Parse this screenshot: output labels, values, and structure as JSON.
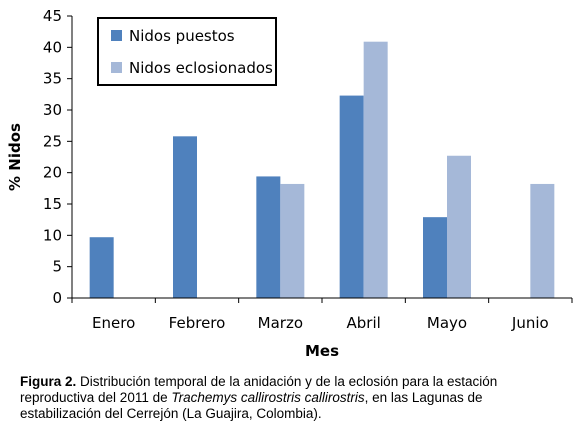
{
  "chart_data": {
    "type": "bar",
    "categories": [
      "Enero",
      "Febrero",
      "Marzo",
      "Abril",
      "Mayo",
      "Junio"
    ],
    "series": [
      {
        "name": "Nidos puestos",
        "values": [
          9.7,
          25.8,
          19.4,
          32.3,
          12.9,
          null
        ],
        "color": "#4f81bd"
      },
      {
        "name": "Nidos eclosionados",
        "values": [
          null,
          null,
          18.2,
          40.9,
          22.7,
          18.2
        ],
        "color": "#a5b8d8"
      }
    ],
    "xlabel": "Mes",
    "ylabel": "% Nidos",
    "ylim": [
      0,
      45
    ],
    "yticks": [
      0,
      5,
      10,
      15,
      20,
      25,
      30,
      35,
      40,
      45
    ],
    "grid": false,
    "legend_position": "top-left"
  },
  "caption": {
    "label": "Figura 2.",
    "text_before": " Distribución temporal de la anidación y de la eclosión para la estación reproductiva del 2011 de ",
    "species": "Trachemys callirostris callirostris",
    "text_after": ", en las Lagunas de estabilización del Cerrejón (La Guajira, Colombia)."
  }
}
